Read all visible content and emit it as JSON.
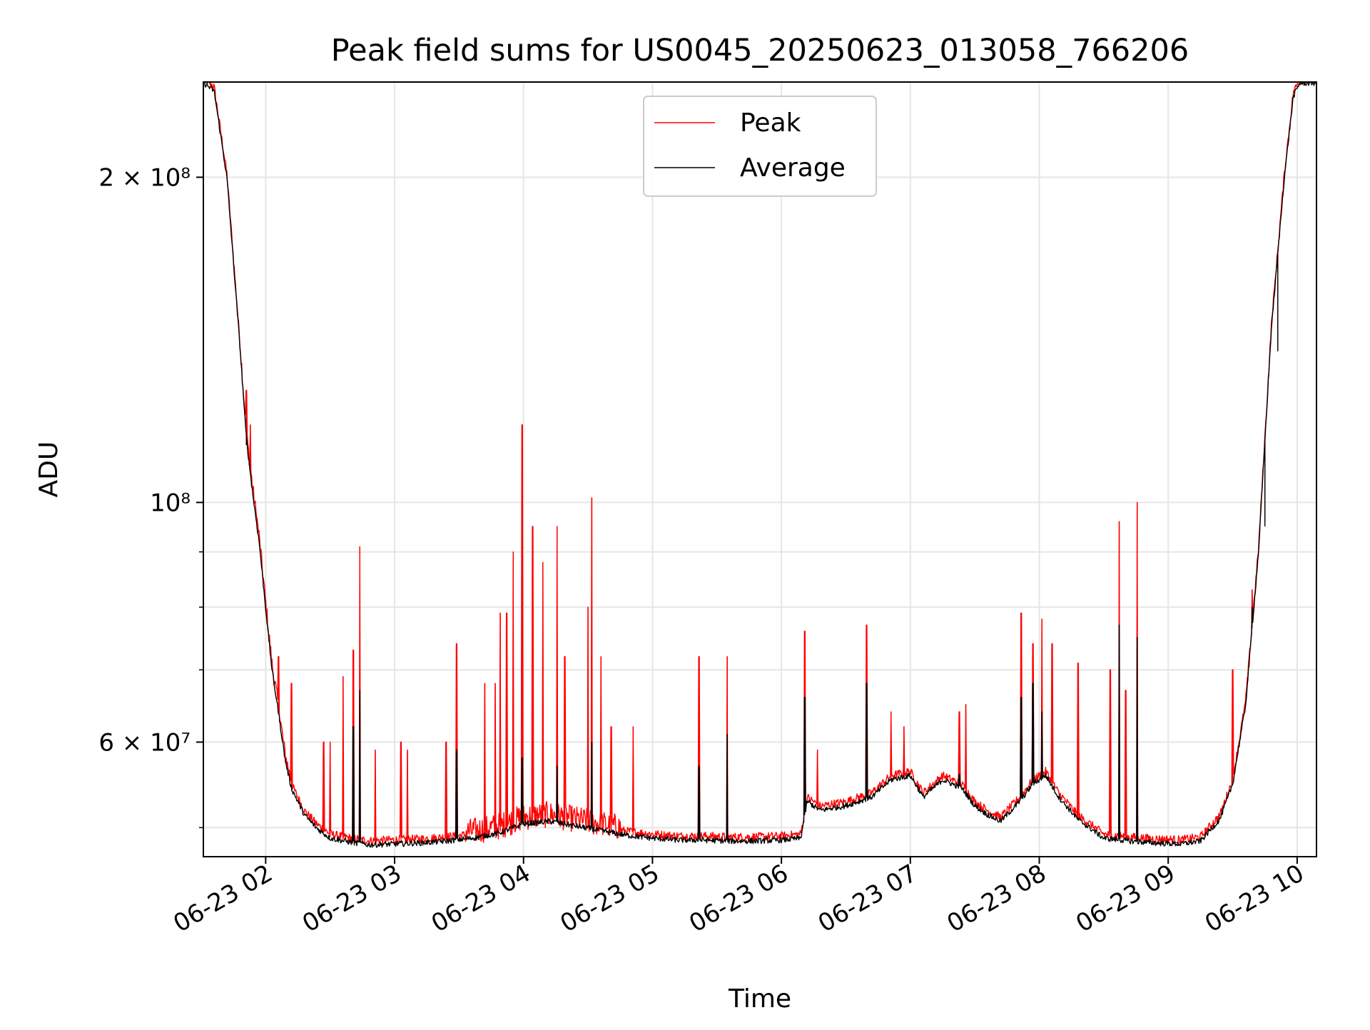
{
  "chart_data": {
    "type": "line",
    "title": "Peak field sums for US0045_20250623_013058_766206",
    "xlabel": "Time",
    "ylabel": "ADU",
    "y_scale": "log",
    "grid": true,
    "legend_position": "top-center",
    "x_range": [
      "2025-06-23 01:31",
      "2025-06-23 10:09"
    ],
    "ylim": [
      47000000,
      245000000
    ],
    "x_ticks": [
      "06-23 02",
      "06-23 03",
      "06-23 04",
      "06-23 05",
      "06-23 06",
      "06-23 07",
      "06-23 08",
      "06-23 09",
      "06-23 10"
    ],
    "x_tick_hours": [
      2,
      3,
      4,
      5,
      6,
      7,
      8,
      9,
      10
    ],
    "y_ticks_labeled": [
      {
        "value": 60000000,
        "label": "6 × 10⁷"
      },
      {
        "value": 100000000,
        "label": "10⁸"
      },
      {
        "value": 200000000,
        "label": "2 × 10⁸"
      }
    ],
    "y_ticks_minor": [
      50000000,
      70000000,
      80000000,
      90000000
    ],
    "base_curve": {
      "description_units": "x in hours of 2025-06-23, y in ADU",
      "points": [
        [
          1.52,
          245000000
        ],
        [
          1.6,
          241000000
        ],
        [
          1.7,
          200000000
        ],
        [
          1.8,
          140000000
        ],
        [
          1.85,
          115000000
        ],
        [
          1.9,
          102000000
        ],
        [
          1.95,
          92000000
        ],
        [
          2.0,
          80000000
        ],
        [
          2.05,
          70000000
        ],
        [
          2.1,
          64000000
        ],
        [
          2.15,
          58000000
        ],
        [
          2.2,
          54500000
        ],
        [
          2.3,
          51500000
        ],
        [
          2.4,
          50000000
        ],
        [
          2.5,
          49000000
        ],
        [
          2.65,
          48600000
        ],
        [
          2.8,
          48300000
        ],
        [
          3.0,
          48400000
        ],
        [
          3.2,
          48500000
        ],
        [
          3.4,
          48700000
        ],
        [
          3.6,
          49000000
        ],
        [
          3.8,
          49500000
        ],
        [
          4.0,
          50500000
        ],
        [
          4.2,
          50800000
        ],
        [
          4.4,
          50300000
        ],
        [
          4.6,
          49800000
        ],
        [
          4.8,
          49300000
        ],
        [
          5.0,
          49000000
        ],
        [
          5.2,
          48800000
        ],
        [
          5.4,
          48800000
        ],
        [
          5.6,
          48700000
        ],
        [
          5.8,
          48700000
        ],
        [
          6.0,
          48800000
        ],
        [
          6.15,
          49000000
        ],
        [
          6.2,
          53000000
        ],
        [
          6.3,
          52000000
        ],
        [
          6.5,
          52500000
        ],
        [
          6.7,
          53500000
        ],
        [
          6.85,
          55500000
        ],
        [
          7.0,
          56000000
        ],
        [
          7.1,
          53500000
        ],
        [
          7.25,
          55500000
        ],
        [
          7.4,
          54500000
        ],
        [
          7.5,
          52500000
        ],
        [
          7.6,
          51500000
        ],
        [
          7.7,
          50800000
        ],
        [
          7.85,
          53000000
        ],
        [
          7.95,
          55000000
        ],
        [
          8.05,
          56000000
        ],
        [
          8.15,
          53500000
        ],
        [
          8.3,
          51000000
        ],
        [
          8.4,
          50000000
        ],
        [
          8.5,
          49000000
        ],
        [
          8.7,
          48700000
        ],
        [
          8.9,
          48500000
        ],
        [
          9.1,
          48400000
        ],
        [
          9.25,
          48700000
        ],
        [
          9.4,
          51000000
        ],
        [
          9.5,
          55000000
        ],
        [
          9.6,
          65000000
        ],
        [
          9.7,
          90000000
        ],
        [
          9.8,
          145000000
        ],
        [
          9.9,
          200000000
        ],
        [
          9.97,
          238000000
        ],
        [
          10.02,
          245000000
        ],
        [
          10.15,
          245000000
        ]
      ]
    },
    "series": [
      {
        "name": "Peak",
        "color": "#ff0000",
        "spikes": [
          [
            1.85,
            127000000
          ],
          [
            1.88,
            118000000
          ],
          [
            1.93,
            97000000
          ],
          [
            2.1,
            72000000
          ],
          [
            2.2,
            68000000
          ],
          [
            2.45,
            60000000
          ],
          [
            2.5,
            60000000
          ],
          [
            2.6,
            69000000
          ],
          [
            2.68,
            73000000
          ],
          [
            2.73,
            91000000
          ],
          [
            2.85,
            59000000
          ],
          [
            3.05,
            60000000
          ],
          [
            3.1,
            59000000
          ],
          [
            3.4,
            60000000
          ],
          [
            3.48,
            74000000
          ],
          [
            3.7,
            68000000
          ],
          [
            3.78,
            68000000
          ],
          [
            3.82,
            79000000
          ],
          [
            3.87,
            79000000
          ],
          [
            3.92,
            90000000
          ],
          [
            3.99,
            118000000
          ],
          [
            4.07,
            95000000
          ],
          [
            4.15,
            88000000
          ],
          [
            4.26,
            95000000
          ],
          [
            4.32,
            72000000
          ],
          [
            4.5,
            80000000
          ],
          [
            4.53,
            101000000
          ],
          [
            4.6,
            72000000
          ],
          [
            4.68,
            62000000
          ],
          [
            4.85,
            62000000
          ],
          [
            5.36,
            72000000
          ],
          [
            5.58,
            72000000
          ],
          [
            6.18,
            76000000
          ],
          [
            6.28,
            59000000
          ],
          [
            6.66,
            77000000
          ],
          [
            6.85,
            64000000
          ],
          [
            6.95,
            62000000
          ],
          [
            7.38,
            64000000
          ],
          [
            7.43,
            65000000
          ],
          [
            7.86,
            79000000
          ],
          [
            7.95,
            74000000
          ],
          [
            8.02,
            78000000
          ],
          [
            8.1,
            74000000
          ],
          [
            8.3,
            71000000
          ],
          [
            8.55,
            70000000
          ],
          [
            8.62,
            96000000
          ],
          [
            8.67,
            67000000
          ],
          [
            8.76,
            100000000
          ],
          [
            9.5,
            70000000
          ],
          [
            9.65,
            83000000
          ],
          [
            9.75,
            96000000
          ],
          [
            9.85,
            140000000
          ]
        ]
      },
      {
        "name": "Average",
        "color": "#000000",
        "spikes": [
          [
            1.85,
            113000000
          ],
          [
            2.73,
            67000000
          ],
          [
            2.68,
            62000000
          ],
          [
            3.48,
            59000000
          ],
          [
            3.99,
            58000000
          ],
          [
            4.26,
            57000000
          ],
          [
            4.53,
            60000000
          ],
          [
            5.36,
            57000000
          ],
          [
            5.58,
            61000000
          ],
          [
            6.18,
            66000000
          ],
          [
            6.66,
            68000000
          ],
          [
            7.38,
            56000000
          ],
          [
            7.86,
            66000000
          ],
          [
            7.95,
            68000000
          ],
          [
            8.02,
            64000000
          ],
          [
            8.62,
            77000000
          ],
          [
            8.76,
            75000000
          ],
          [
            9.65,
            80000000
          ],
          [
            9.75,
            95000000
          ],
          [
            9.85,
            138000000
          ]
        ]
      }
    ]
  }
}
